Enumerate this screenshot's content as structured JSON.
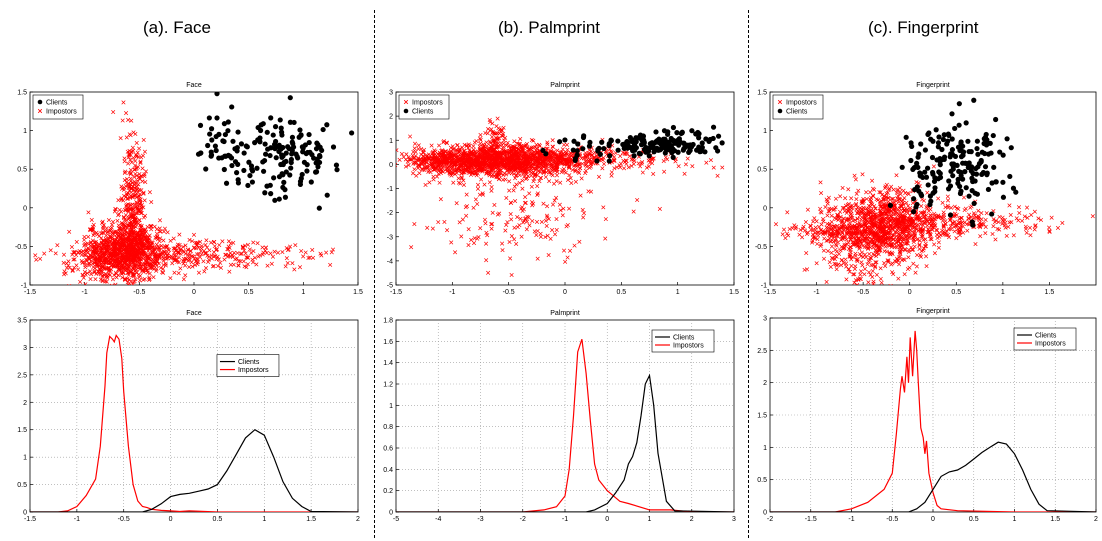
{
  "panels": [
    {
      "title": "(a). Face"
    },
    {
      "title": "(b). Palmprint"
    },
    {
      "title": "(c). Fingerprint"
    }
  ],
  "colors": {
    "clients": "#000000",
    "impostors": "#ff0000",
    "grid": "#9a9a9a"
  },
  "chart_data": [
    {
      "id": "face-scatter",
      "type": "scatter",
      "title": "Face",
      "xlim": [
        -1.5,
        1.5
      ],
      "ylim": [
        -1.0,
        1.5
      ],
      "xticks": [
        "-1.5",
        "-1",
        "-0.5",
        "0",
        "0.5",
        "1",
        "1.5"
      ],
      "yticks": [
        "-1",
        "-0.5",
        "0",
        "0.5",
        "1",
        "1.5"
      ],
      "legend": {
        "position": "top-left",
        "entries": [
          {
            "name": "Clients",
            "marker": "dot"
          },
          {
            "name": "Impostors",
            "marker": "x"
          }
        ]
      },
      "series": [
        {
          "name": "Impostors",
          "clusters": [
            {
              "cx": -0.62,
              "cy": -0.55,
              "sx": 0.18,
              "sy": 0.18,
              "n": 850
            },
            {
              "cx": -0.55,
              "cy": 0.05,
              "sx": 0.06,
              "sy": 0.45,
              "n": 320
            },
            {
              "cx": -0.2,
              "cy": -0.62,
              "sx": 0.5,
              "sy": 0.09,
              "n": 280
            },
            {
              "cx": 0.5,
              "cy": -0.6,
              "sx": 0.45,
              "sy": 0.07,
              "n": 70
            },
            {
              "cx": -0.85,
              "cy": -0.75,
              "sx": 0.18,
              "sy": 0.2,
              "n": 150
            }
          ]
        },
        {
          "name": "Clients",
          "clusters": [
            {
              "cx": 0.8,
              "cy": 0.72,
              "sx": 0.25,
              "sy": 0.25,
              "n": 150
            },
            {
              "cx": 0.22,
              "cy": 0.75,
              "sx": 0.12,
              "sy": 0.25,
              "n": 30
            }
          ]
        }
      ]
    },
    {
      "id": "palm-scatter",
      "type": "scatter",
      "title": "Palmprint",
      "xlim": [
        -1.5,
        1.5
      ],
      "ylim": [
        -5,
        3
      ],
      "xticks": [
        "-1.5",
        "-1",
        "-0.5",
        "0",
        "0.5",
        "1",
        "1.5"
      ],
      "yticks": [
        "-5",
        "-4",
        "-3",
        "-2",
        "-1",
        "0",
        "1",
        "2",
        "3"
      ],
      "legend": {
        "position": "top-left",
        "entries": [
          {
            "name": "Impostors",
            "marker": "x"
          },
          {
            "name": "Clients",
            "marker": "dot"
          }
        ]
      },
      "series": [
        {
          "name": "Impostors",
          "clusters": [
            {
              "cx": -0.6,
              "cy": 0.15,
              "sx": 0.35,
              "sy": 0.35,
              "n": 1100
            },
            {
              "cx": -0.1,
              "cy": 0.2,
              "sx": 0.55,
              "sy": 0.25,
              "n": 450
            },
            {
              "cx": -1.05,
              "cy": 0.1,
              "sx": 0.15,
              "sy": 0.25,
              "n": 220
            },
            {
              "cx": -0.35,
              "cy": -2.0,
              "sx": 0.45,
              "sy": 1.0,
              "n": 180
            },
            {
              "cx": -0.62,
              "cy": 1.0,
              "sx": 0.05,
              "sy": 0.5,
              "n": 60
            }
          ]
        },
        {
          "name": "Clients",
          "clusters": [
            {
              "cx": 0.85,
              "cy": 0.85,
              "sx": 0.25,
              "sy": 0.25,
              "n": 160
            },
            {
              "cx": 0.15,
              "cy": 0.6,
              "sx": 0.2,
              "sy": 0.3,
              "n": 20
            }
          ]
        }
      ]
    },
    {
      "id": "finger-scatter",
      "type": "scatter",
      "title": "Fingerprint",
      "xlim": [
        -1.5,
        2.0
      ],
      "ylim": [
        -1.0,
        1.5
      ],
      "xticks": [
        "-1.5",
        "-1",
        "-0.5",
        "0",
        "0.5",
        "1",
        "1.5"
      ],
      "yticks": [
        "-1",
        "-0.5",
        "0",
        "0.5",
        "1",
        "1.5"
      ],
      "legend": {
        "position": "top-left",
        "entries": [
          {
            "name": "Impostors",
            "marker": "x"
          },
          {
            "name": "Clients",
            "marker": "dot"
          }
        ]
      },
      "series": [
        {
          "name": "Impostors",
          "clusters": [
            {
              "cx": -0.3,
              "cy": -0.25,
              "sx": 0.3,
              "sy": 0.25,
              "n": 900
            },
            {
              "cx": 0.15,
              "cy": -0.2,
              "sx": 0.5,
              "sy": 0.12,
              "n": 300
            },
            {
              "cx": -0.8,
              "cy": -0.3,
              "sx": 0.3,
              "sy": 0.05,
              "n": 120
            },
            {
              "cx": 0.9,
              "cy": -0.18,
              "sx": 0.45,
              "sy": 0.1,
              "n": 60
            },
            {
              "cx": -0.5,
              "cy": -0.6,
              "sx": 0.25,
              "sy": 0.25,
              "n": 120
            }
          ]
        },
        {
          "name": "Clients",
          "clusters": [
            {
              "cx": 0.55,
              "cy": 0.6,
              "sx": 0.3,
              "sy": 0.3,
              "n": 160
            },
            {
              "cx": 0.05,
              "cy": 0.4,
              "sx": 0.12,
              "sy": 0.3,
              "n": 20
            }
          ]
        }
      ]
    },
    {
      "id": "face-density",
      "type": "line",
      "title": "Face",
      "xlim": [
        -1.5,
        2.0
      ],
      "ylim": [
        0,
        3.5
      ],
      "grid": true,
      "xticks": [
        "-1.5",
        "-1",
        "-0.5",
        "0",
        "0.5",
        "1",
        "1.5",
        "2"
      ],
      "yticks": [
        "0",
        "0.5",
        "1",
        "1.5",
        "2",
        "2.5",
        "3",
        "3.5"
      ],
      "legend": {
        "position": "center",
        "entries": [
          {
            "name": "Clients",
            "color": "#000000"
          },
          {
            "name": "Impostors",
            "color": "#ff0000"
          }
        ]
      },
      "series": [
        {
          "name": "Impostors",
          "color": "#ff0000",
          "x": [
            -1.5,
            -1.2,
            -1.1,
            -1.0,
            -0.9,
            -0.8,
            -0.75,
            -0.7,
            -0.68,
            -0.65,
            -0.62,
            -0.6,
            -0.58,
            -0.55,
            -0.52,
            -0.5,
            -0.45,
            -0.4,
            -0.35,
            -0.3,
            -0.25,
            -0.2,
            -0.1,
            0,
            0.1,
            0.2,
            0.5,
            1.0,
            2.0
          ],
          "y": [
            0,
            0,
            0.02,
            0.1,
            0.3,
            0.6,
            1.2,
            2.3,
            2.9,
            3.2,
            3.15,
            3.1,
            3.22,
            3.15,
            2.8,
            2.2,
            1.2,
            0.5,
            0.2,
            0.1,
            0.08,
            0.05,
            0.03,
            0.02,
            0.01,
            0.02,
            0,
            0,
            0
          ]
        },
        {
          "name": "Clients",
          "color": "#000000",
          "x": [
            -1.5,
            -0.3,
            -0.2,
            -0.1,
            0,
            0.1,
            0.2,
            0.3,
            0.4,
            0.5,
            0.6,
            0.7,
            0.8,
            0.9,
            1.0,
            1.1,
            1.2,
            1.3,
            1.4,
            1.5,
            2.0
          ],
          "y": [
            0,
            0,
            0.05,
            0.15,
            0.28,
            0.32,
            0.34,
            0.38,
            0.42,
            0.5,
            0.75,
            1.05,
            1.35,
            1.5,
            1.4,
            1.0,
            0.55,
            0.25,
            0.1,
            0.01,
            0
          ]
        }
      ]
    },
    {
      "id": "palm-density",
      "type": "line",
      "title": "Palmprint",
      "xlim": [
        -5,
        3
      ],
      "ylim": [
        0,
        1.8
      ],
      "grid": true,
      "xticks": [
        "-5",
        "-4",
        "-3",
        "-2",
        "-1",
        "0",
        "1",
        "2",
        "3"
      ],
      "yticks": [
        "0",
        "0.2",
        "0.4",
        "0.6",
        "0.8",
        "1",
        "1.2",
        "1.4",
        "1.6",
        "1.8"
      ],
      "legend": {
        "position": "top-right",
        "entries": [
          {
            "name": "Clients",
            "color": "#000000"
          },
          {
            "name": "Impostors",
            "color": "#ff0000"
          }
        ]
      },
      "series": [
        {
          "name": "Impostors",
          "color": "#ff0000",
          "x": [
            -5,
            -2,
            -1.5,
            -1.2,
            -1.0,
            -0.9,
            -0.8,
            -0.7,
            -0.6,
            -0.5,
            -0.4,
            -0.3,
            -0.2,
            0,
            0.3,
            0.5,
            1.0,
            1.5,
            2.0,
            3.0
          ],
          "y": [
            0,
            0,
            0.02,
            0.05,
            0.15,
            0.4,
            0.9,
            1.5,
            1.62,
            1.3,
            0.85,
            0.45,
            0.3,
            0.2,
            0.1,
            0.08,
            0.02,
            0.02,
            0,
            0
          ]
        },
        {
          "name": "Clients",
          "color": "#000000",
          "x": [
            -5,
            -0.5,
            -0.3,
            0,
            0.2,
            0.4,
            0.5,
            0.6,
            0.7,
            0.8,
            0.9,
            1.0,
            1.1,
            1.2,
            1.4,
            1.6,
            3.0
          ],
          "y": [
            0,
            0,
            0.02,
            0.08,
            0.18,
            0.3,
            0.45,
            0.52,
            0.65,
            0.9,
            1.2,
            1.28,
            1.0,
            0.55,
            0.1,
            0.01,
            0
          ]
        }
      ]
    },
    {
      "id": "finger-density",
      "type": "line",
      "title": "Fingerprint",
      "xlim": [
        -2,
        2
      ],
      "ylim": [
        0,
        3
      ],
      "grid": true,
      "xticks": [
        "-2",
        "-1.5",
        "-1",
        "-0.5",
        "0",
        "0.5",
        "1",
        "1.5",
        "2"
      ],
      "yticks": [
        "0",
        "0.5",
        "1",
        "1.5",
        "2",
        "2.5",
        "3"
      ],
      "legend": {
        "position": "top-right",
        "entries": [
          {
            "name": "Clients",
            "color": "#000000"
          },
          {
            "name": "Impostors",
            "color": "#ff0000"
          }
        ]
      },
      "series": [
        {
          "name": "Impostors",
          "color": "#ff0000",
          "x": [
            -2,
            -1.2,
            -1.0,
            -0.8,
            -0.6,
            -0.5,
            -0.45,
            -0.4,
            -0.38,
            -0.35,
            -0.32,
            -0.3,
            -0.28,
            -0.25,
            -0.22,
            -0.2,
            -0.18,
            -0.15,
            -0.12,
            -0.1,
            -0.08,
            -0.05,
            0,
            0.05,
            0.1,
            0.3,
            1.0,
            2.0
          ],
          "y": [
            0,
            0,
            0.05,
            0.15,
            0.35,
            0.6,
            1.2,
            1.9,
            2.1,
            1.85,
            2.4,
            2.0,
            2.7,
            2.1,
            2.8,
            2.5,
            2.0,
            1.3,
            1.15,
            0.9,
            1.1,
            0.6,
            0.3,
            0.1,
            0.05,
            0.02,
            0,
            0
          ]
        },
        {
          "name": "Clients",
          "color": "#000000",
          "x": [
            -2,
            -0.3,
            -0.2,
            -0.1,
            0,
            0.1,
            0.2,
            0.3,
            0.4,
            0.5,
            0.6,
            0.7,
            0.8,
            0.9,
            1.0,
            1.1,
            1.2,
            1.3,
            1.4,
            2.0
          ],
          "y": [
            0,
            0,
            0.05,
            0.15,
            0.35,
            0.55,
            0.62,
            0.65,
            0.72,
            0.82,
            0.92,
            1.0,
            1.08,
            1.05,
            0.9,
            0.65,
            0.35,
            0.12,
            0.02,
            0
          ]
        }
      ]
    }
  ]
}
